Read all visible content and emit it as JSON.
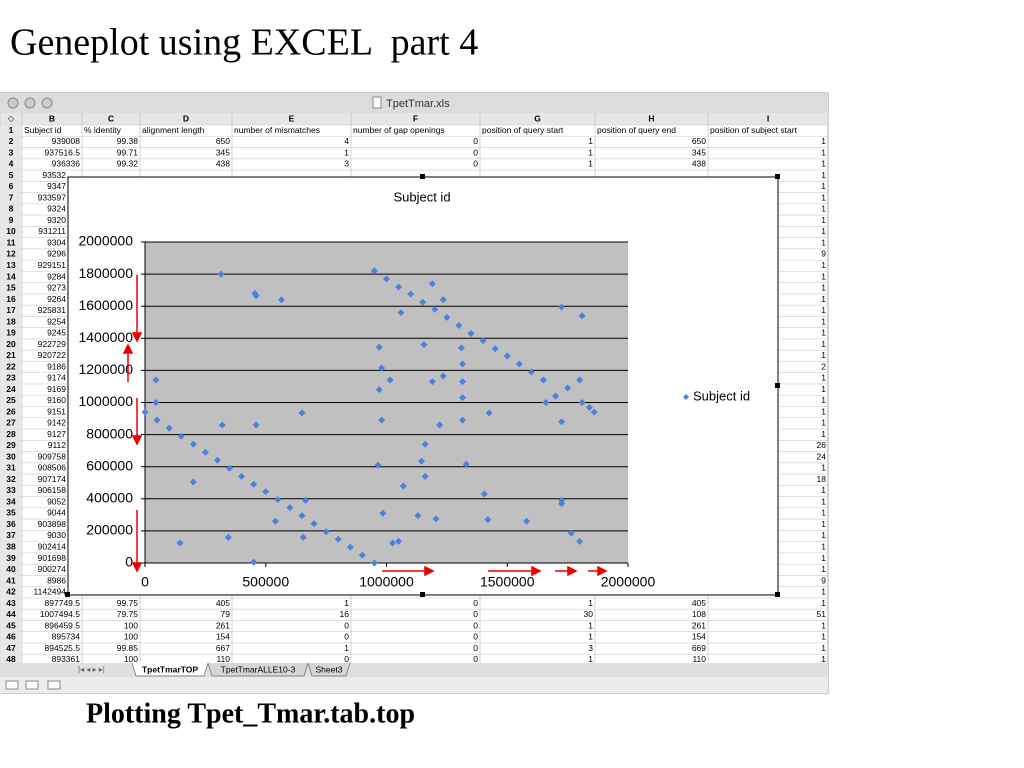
{
  "slide": {
    "title": "Geneplot using EXCEL  part 4",
    "caption": "Plotting Tpet_Tmar.tab.top"
  },
  "window": {
    "title": "TpetTmar.xls",
    "sheet_tabs": [
      "TpetTmarTOP",
      "TpetTmarALLE10-3",
      "Sheet3"
    ]
  },
  "table": {
    "columns": [
      "B",
      "C",
      "D",
      "E",
      "F",
      "G",
      "H",
      "I"
    ],
    "header_row": 1,
    "header": [
      "Subject id",
      "% identity",
      "alignment length",
      "number of mismatches",
      "number of gap openings",
      "position of query start",
      "position of query end",
      "position of subject start"
    ],
    "rows": [
      [
        2,
        939008,
        99.38,
        650,
        4,
        0,
        1,
        650,
        1
      ],
      [
        3,
        937516.5,
        99.71,
        345,
        1,
        0,
        1,
        345,
        1
      ],
      [
        4,
        936336,
        99.32,
        438,
        3,
        0,
        1,
        438,
        1
      ],
      [
        5,
        "93532",
        null,
        null,
        null,
        null,
        null,
        null,
        1
      ],
      [
        6,
        "9347",
        null,
        null,
        null,
        null,
        null,
        null,
        1
      ],
      [
        7,
        "933597",
        null,
        null,
        null,
        null,
        null,
        null,
        1
      ],
      [
        8,
        "9324",
        null,
        null,
        null,
        null,
        null,
        null,
        1
      ],
      [
        9,
        "9320",
        null,
        null,
        null,
        null,
        null,
        null,
        1
      ],
      [
        10,
        "931211",
        null,
        null,
        null,
        null,
        null,
        null,
        1
      ],
      [
        11,
        "9304",
        null,
        null,
        null,
        null,
        null,
        null,
        1
      ],
      [
        12,
        "9296",
        null,
        null,
        null,
        null,
        null,
        null,
        9
      ],
      [
        13,
        "929151",
        null,
        null,
        null,
        null,
        null,
        null,
        1
      ],
      [
        14,
        "9284",
        null,
        null,
        null,
        null,
        null,
        null,
        1
      ],
      [
        15,
        "9273",
        null,
        null,
        null,
        null,
        null,
        null,
        1
      ],
      [
        16,
        "9264",
        null,
        null,
        null,
        null,
        null,
        null,
        1
      ],
      [
        17,
        "925831",
        null,
        null,
        null,
        null,
        null,
        null,
        1
      ],
      [
        18,
        "9254",
        null,
        null,
        null,
        null,
        null,
        null,
        1
      ],
      [
        19,
        "9245",
        null,
        null,
        null,
        null,
        null,
        null,
        1
      ],
      [
        20,
        "922729",
        null,
        null,
        null,
        null,
        null,
        null,
        1
      ],
      [
        21,
        "920722",
        null,
        null,
        null,
        null,
        null,
        null,
        1
      ],
      [
        22,
        "9186",
        null,
        null,
        null,
        null,
        null,
        null,
        2
      ],
      [
        23,
        "9174",
        null,
        null,
        null,
        null,
        null,
        null,
        1
      ],
      [
        24,
        "9169",
        null,
        null,
        null,
        null,
        null,
        null,
        1
      ],
      [
        25,
        "9160",
        null,
        null,
        null,
        null,
        null,
        null,
        1
      ],
      [
        26,
        "9151",
        null,
        null,
        null,
        null,
        null,
        null,
        1
      ],
      [
        27,
        "9142",
        null,
        null,
        null,
        null,
        null,
        null,
        1
      ],
      [
        28,
        "9127",
        null,
        null,
        null,
        null,
        null,
        null,
        1
      ],
      [
        29,
        "9112",
        null,
        null,
        null,
        null,
        null,
        null,
        26
      ],
      [
        30,
        "909758",
        null,
        null,
        null,
        null,
        null,
        null,
        24
      ],
      [
        31,
        "908506",
        null,
        null,
        null,
        null,
        null,
        null,
        1
      ],
      [
        32,
        "907174",
        null,
        null,
        null,
        null,
        null,
        null,
        18
      ],
      [
        33,
        "906158",
        null,
        null,
        null,
        null,
        null,
        null,
        1
      ],
      [
        34,
        "9052",
        null,
        null,
        null,
        null,
        null,
        null,
        1
      ],
      [
        35,
        "9044",
        null,
        null,
        null,
        null,
        null,
        null,
        1
      ],
      [
        36,
        "903898",
        null,
        null,
        null,
        null,
        null,
        null,
        1
      ],
      [
        37,
        "9030",
        null,
        null,
        null,
        null,
        null,
        null,
        1
      ],
      [
        38,
        "902414",
        null,
        null,
        null,
        null,
        null,
        null,
        1
      ],
      [
        39,
        "901698",
        null,
        null,
        null,
        null,
        null,
        null,
        1
      ],
      [
        40,
        "900274",
        null,
        null,
        null,
        null,
        null,
        null,
        1
      ],
      [
        41,
        "8986",
        null,
        null,
        null,
        null,
        null,
        null,
        9
      ],
      [
        42,
        "1142494",
        null,
        null,
        null,
        null,
        null,
        null,
        1
      ],
      [
        43,
        897749.5,
        99.75,
        405,
        1,
        0,
        1,
        405,
        1
      ],
      [
        44,
        1007494.5,
        79.75,
        79,
        16,
        0,
        30,
        108,
        51
      ],
      [
        45,
        896459.5,
        100,
        261,
        0,
        0,
        1,
        261,
        1
      ],
      [
        46,
        895734,
        100,
        154,
        0,
        0,
        1,
        154,
        1
      ],
      [
        47,
        894525.5,
        99.85,
        667,
        1,
        0,
        3,
        669,
        1
      ],
      [
        48,
        893361,
        100,
        110,
        0,
        0,
        1,
        110,
        1
      ]
    ]
  },
  "chart_data": {
    "type": "scatter",
    "title": "Subject id",
    "xlim": [
      0,
      2000000
    ],
    "xticks": [
      0,
      500000,
      1000000,
      1500000,
      2000000
    ],
    "ylim": [
      0,
      2000000
    ],
    "yticks": [
      0,
      200000,
      400000,
      600000,
      800000,
      1000000,
      1200000,
      1400000,
      1600000,
      1800000,
      2000000
    ],
    "grid": true,
    "legend": "right",
    "series": [
      {
        "name": "Subject id",
        "color": "#4f81d9",
        "x": [
          0,
          50000,
          100000,
          150000,
          200000,
          250000,
          300000,
          350000,
          400000,
          450000,
          500000,
          550000,
          600000,
          650000,
          700000,
          750000,
          800000,
          850000,
          900000,
          950000,
          950000,
          1000000,
          1050000,
          1100000,
          1150000,
          1200000,
          1250000,
          1300000,
          1350000,
          1400000,
          1450000,
          1500000,
          1550000,
          1600000,
          1650000,
          1660000,
          1700000,
          1750000,
          1800000,
          1810000,
          1840000,
          1860000,
          45000,
          45000,
          315000,
          200000,
          145000,
          320000,
          345000,
          455000,
          460000,
          460000,
          565000,
          650000,
          540000,
          665000,
          450000,
          655000,
          970000,
          980000,
          1015000,
          970000,
          980000,
          965000,
          985000,
          1025000,
          1050000,
          1060000,
          1070000,
          1145000,
          1160000,
          1160000,
          1130000,
          1155000,
          1190000,
          1190000,
          1205000,
          1220000,
          1235000,
          1235000,
          1310000,
          1315000,
          1315000,
          1315000,
          1315000,
          1330000,
          1405000,
          1425000,
          1420000,
          1580000,
          1725000,
          1725000,
          1725000,
          1725000,
          1765000,
          1800000,
          1810000
        ],
        "values": [
          940000,
          890000,
          840000,
          790000,
          740000,
          690000,
          640000,
          590000,
          540000,
          490000,
          445000,
          395000,
          345000,
          295000,
          245000,
          195000,
          148000,
          98000,
          49000,
          0,
          1820000,
          1770000,
          1720000,
          1675000,
          1625000,
          1580000,
          1530000,
          1480000,
          1430000,
          1385000,
          1335000,
          1290000,
          1240000,
          1190000,
          1140000,
          1000000,
          1040000,
          1090000,
          1140000,
          1000000,
          970000,
          940000,
          1140000,
          1000000,
          1800000,
          505000,
          125000,
          860000,
          160000,
          1680000,
          1665000,
          860000,
          1640000,
          935000,
          260000,
          390000,
          5000,
          160000,
          1345000,
          1215000,
          1140000,
          1080000,
          890000,
          610000,
          310000,
          125000,
          135000,
          1560000,
          480000,
          635000,
          740000,
          540000,
          295000,
          1360000,
          1740000,
          1130000,
          275000,
          860000,
          1165000,
          1640000,
          1340000,
          1240000,
          1130000,
          1030000,
          890000,
          615000,
          430000,
          935000,
          270000,
          260000,
          1595000,
          880000,
          390000,
          370000,
          185000,
          135000,
          1540000
        ]
      }
    ]
  }
}
